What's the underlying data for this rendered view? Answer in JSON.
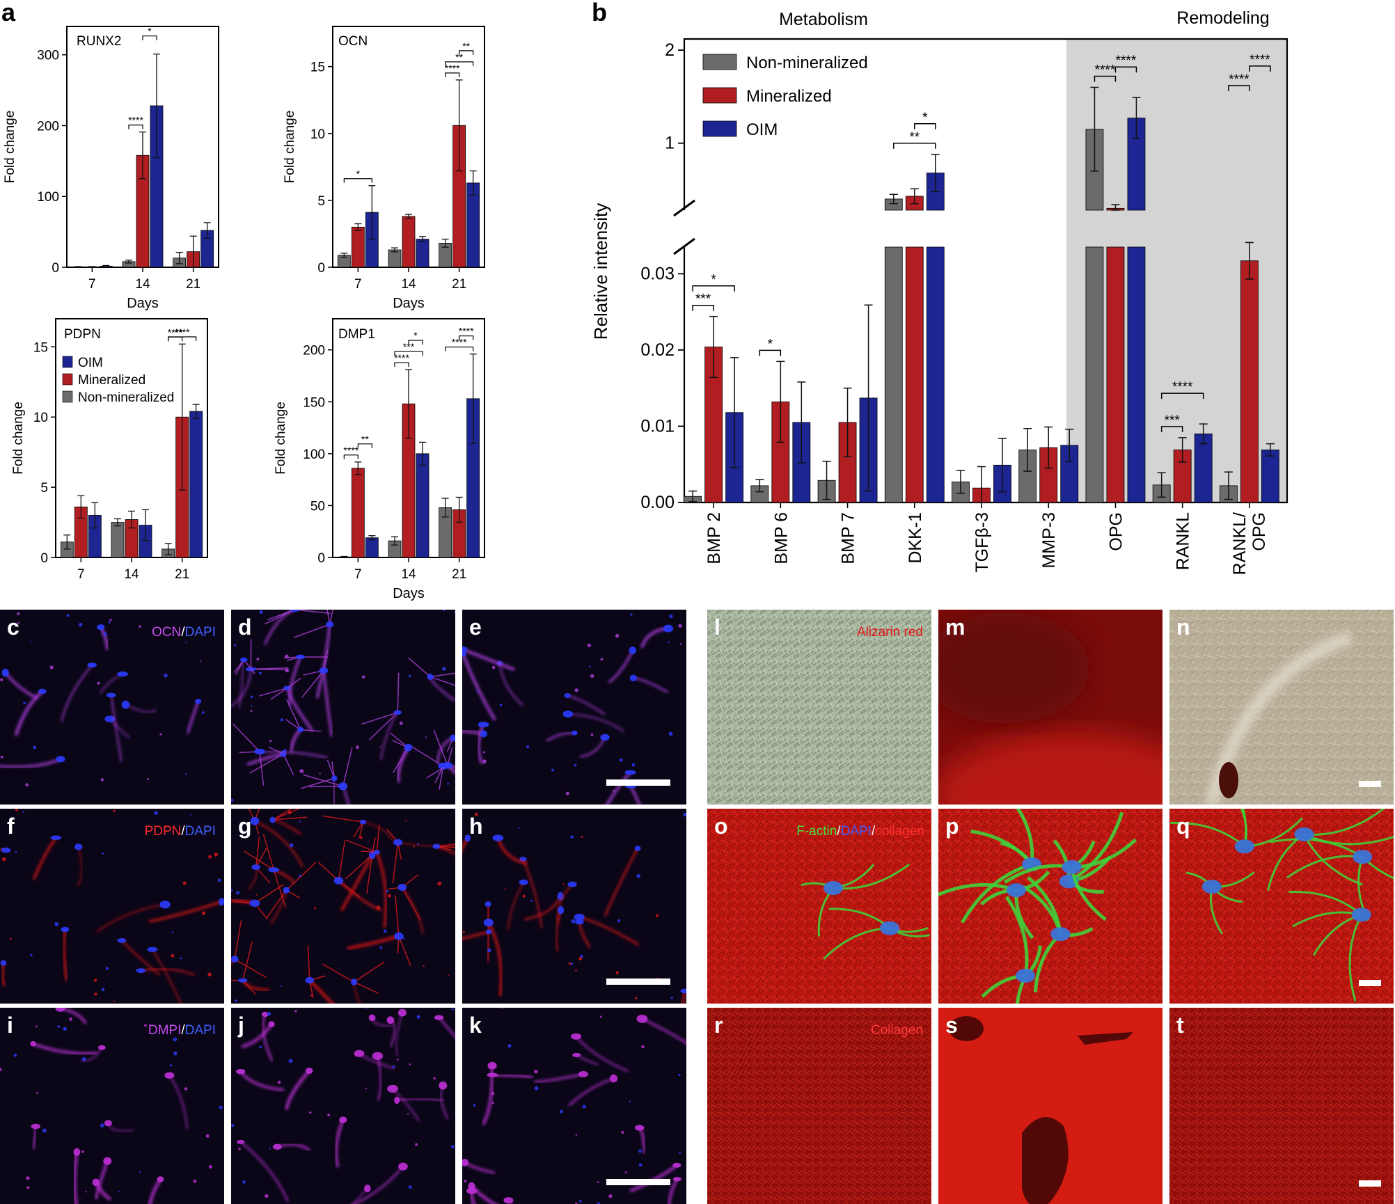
{
  "panel_letters": [
    "a",
    "b",
    "c",
    "d",
    "e",
    "f",
    "g",
    "h",
    "i",
    "j",
    "k",
    "l",
    "m",
    "n",
    "o",
    "p",
    "q",
    "r",
    "s",
    "t"
  ],
  "colors": {
    "non_mineralized": "#6b6b6b",
    "mineralized": "#b01e22",
    "oim": "#1c2591",
    "grey_region": "#d4d4d4"
  },
  "chart_data": [
    {
      "panel": "a",
      "type": "bar",
      "title": "RUNX2",
      "xlabel": "Days",
      "ylabel": "Fold change",
      "categories": [
        "7",
        "14",
        "21"
      ],
      "ylim": [
        0,
        340
      ],
      "yticks": [
        0,
        100,
        200,
        300
      ],
      "series": [
        {
          "name": "Non-mineralized",
          "values": [
            0.5,
            8,
            13
          ],
          "err": [
            0.5,
            2,
            8
          ]
        },
        {
          "name": "Mineralized",
          "values": [
            0.5,
            158,
            22
          ],
          "err": [
            0.5,
            33,
            22
          ]
        },
        {
          "name": "OIM",
          "values": [
            1.5,
            228,
            52
          ],
          "err": [
            1,
            73,
            11
          ]
        }
      ],
      "sig": [
        {
          "label": "****",
          "cat": 1,
          "from": 0,
          "to": 1
        },
        {
          "label": "*",
          "cat": 1,
          "from": 1,
          "to": 2
        }
      ]
    },
    {
      "panel": "a",
      "type": "bar",
      "title": "OCN",
      "xlabel": "Days",
      "ylabel": "Fold change",
      "categories": [
        "7",
        "14",
        "21"
      ],
      "ylim": [
        0,
        18
      ],
      "yticks": [
        0,
        5,
        10,
        15
      ],
      "series": [
        {
          "name": "Non-mineralized",
          "values": [
            0.9,
            1.3,
            1.8
          ],
          "err": [
            0.15,
            0.15,
            0.3
          ]
        },
        {
          "name": "Mineralized",
          "values": [
            3.0,
            3.8,
            10.6
          ],
          "err": [
            0.25,
            0.15,
            3.4
          ]
        },
        {
          "name": "OIM",
          "values": [
            4.1,
            2.1,
            6.3
          ],
          "err": [
            2.0,
            0.2,
            0.9
          ]
        }
      ],
      "sig": [
        {
          "label": "*",
          "cat": 0,
          "from": 0,
          "to": 2
        },
        {
          "label": "****",
          "cat": 2,
          "from": 0,
          "to": 1
        },
        {
          "label": "**",
          "cat": 2,
          "from": 0,
          "to": 2
        },
        {
          "label": "**",
          "cat": 2,
          "from": 1,
          "to": 2
        }
      ]
    },
    {
      "panel": "a",
      "type": "bar",
      "title": "PDPN",
      "xlabel": "",
      "ylabel": "Fold change",
      "categories": [
        "7",
        "14",
        "21"
      ],
      "ylim": [
        0,
        17
      ],
      "yticks": [
        0,
        5,
        10,
        15
      ],
      "legend": [
        "OIM",
        "Mineralized",
        "Non-mineralized"
      ],
      "series": [
        {
          "name": "Non-mineralized",
          "values": [
            1.1,
            2.5,
            0.6
          ],
          "err": [
            0.5,
            0.25,
            0.4
          ]
        },
        {
          "name": "Mineralized",
          "values": [
            3.6,
            2.7,
            10.0
          ],
          "err": [
            0.8,
            0.6,
            5.2
          ]
        },
        {
          "name": "OIM",
          "values": [
            3.0,
            2.3,
            10.4
          ],
          "err": [
            0.9,
            1.1,
            0.5
          ]
        }
      ],
      "sig": [
        {
          "label": "****",
          "cat": 2,
          "from": 0,
          "to": 1
        },
        {
          "label": "****",
          "cat": 2,
          "from": 0,
          "to": 2
        }
      ]
    },
    {
      "panel": "a",
      "type": "bar",
      "title": "DMP1",
      "xlabel": "Days",
      "ylabel": "Fold change",
      "categories": [
        "7",
        "14",
        "21"
      ],
      "ylim": [
        0,
        230
      ],
      "yticks": [
        0,
        50,
        100,
        150,
        200
      ],
      "series": [
        {
          "name": "Non-mineralized",
          "values": [
            0.5,
            16,
            48
          ],
          "err": [
            0.5,
            4,
            9
          ]
        },
        {
          "name": "Mineralized",
          "values": [
            86,
            148,
            46
          ],
          "err": [
            6,
            33,
            12
          ]
        },
        {
          "name": "OIM",
          "values": [
            19,
            100,
            153
          ],
          "err": [
            2,
            11,
            43
          ]
        }
      ],
      "sig": [
        {
          "label": "****",
          "cat": 0,
          "from": 0,
          "to": 1
        },
        {
          "label": "**",
          "cat": 0,
          "from": 1,
          "to": 2
        },
        {
          "label": "****",
          "cat": 1,
          "from": 0,
          "to": 1
        },
        {
          "label": "***",
          "cat": 1,
          "from": 0,
          "to": 2
        },
        {
          "label": "*",
          "cat": 1,
          "from": 1,
          "to": 2
        },
        {
          "label": "****",
          "cat": 2,
          "from": 0,
          "to": 2
        },
        {
          "label": "****",
          "cat": 2,
          "from": 1,
          "to": 2
        }
      ]
    },
    {
      "panel": "b",
      "type": "bar",
      "ylabel": "Relative intensity",
      "region_labels": [
        "Metabolism",
        "Remodeling"
      ],
      "legend": [
        "Non-mineralized",
        "Mineralized",
        "OIM"
      ],
      "categories": [
        "BMP 2",
        "BMP 6",
        "BMP 7",
        "DKK-1",
        "TGFβ-3",
        "MMP-3",
        "OPG",
        "RANKL",
        "RANKL/ OPG"
      ],
      "yticks_lower": [
        "0.00",
        "0.01",
        "0.02",
        "0.03"
      ],
      "yticks_upper": [
        "1",
        "2"
      ],
      "broken_axis": true,
      "series": [
        {
          "name": "Non-mineralized",
          "values": [
            0.0008,
            0.0022,
            0.0029,
            0.4,
            0.0027,
            0.0069,
            1.15,
            0.0023,
            0.0022
          ],
          "err": [
            0.0007,
            0.0008,
            0.0025,
            0.05,
            0.0015,
            0.0028,
            0.45,
            0.0016,
            0.0018
          ]
        },
        {
          "name": "Mineralized",
          "values": [
            0.0204,
            0.0132,
            0.0105,
            0.43,
            0.0019,
            0.0072,
            0.3,
            0.0069,
            0.0317
          ],
          "err": [
            0.004,
            0.0053,
            0.0045,
            0.08,
            0.0028,
            0.0027,
            0.04,
            0.0016,
            0.0024
          ]
        },
        {
          "name": "OIM",
          "values": [
            0.0118,
            0.0105,
            0.0137,
            0.68,
            0.0049,
            0.0075,
            1.27,
            0.009,
            0.0069
          ],
          "err": [
            0.0072,
            0.0053,
            0.0122,
            0.2,
            0.0035,
            0.0021,
            0.22,
            0.0013,
            0.0008
          ]
        }
      ],
      "sig": [
        {
          "label": "***",
          "cat": 0,
          "from": 0,
          "to": 1
        },
        {
          "label": "*",
          "cat": 0,
          "from": 0,
          "to": 2
        },
        {
          "label": "*",
          "cat": 1,
          "from": 0,
          "to": 1
        },
        {
          "label": "**",
          "cat": 3,
          "from": 0,
          "to": 2
        },
        {
          "label": "*",
          "cat": 3,
          "from": 1,
          "to": 2
        },
        {
          "label": "****",
          "cat": 6,
          "from": 0,
          "to": 1
        },
        {
          "label": "****",
          "cat": 6,
          "from": 1,
          "to": 2
        },
        {
          "label": "***",
          "cat": 7,
          "from": 0,
          "to": 1
        },
        {
          "label": "****",
          "cat": 7,
          "from": 0,
          "to": 2
        },
        {
          "label": "****",
          "cat": 8,
          "from": 0,
          "to": 1
        },
        {
          "label": "****",
          "cat": 8,
          "from": 1,
          "to": 2
        }
      ]
    }
  ],
  "micrographs": {
    "row_ocn": {
      "label": "OCN/DAPI",
      "panels": [
        "c",
        "d",
        "e"
      ]
    },
    "row_pdpn": {
      "label": "PDPN/DAPI",
      "panels": [
        "f",
        "g",
        "h"
      ]
    },
    "row_dmp": {
      "label": "DMPI/DAPI",
      "panels": [
        "i",
        "j",
        "k"
      ]
    },
    "row_alizarin": {
      "label": "Alizarin red",
      "panels": [
        "l",
        "m",
        "n"
      ]
    },
    "row_factin": {
      "label_parts": [
        "F-actin",
        "/",
        "DAPI",
        "/",
        "collagen"
      ],
      "panels": [
        "o",
        "p",
        "q"
      ]
    },
    "row_collagen": {
      "label": "Collagen",
      "panels": [
        "r",
        "s",
        "t"
      ]
    }
  }
}
